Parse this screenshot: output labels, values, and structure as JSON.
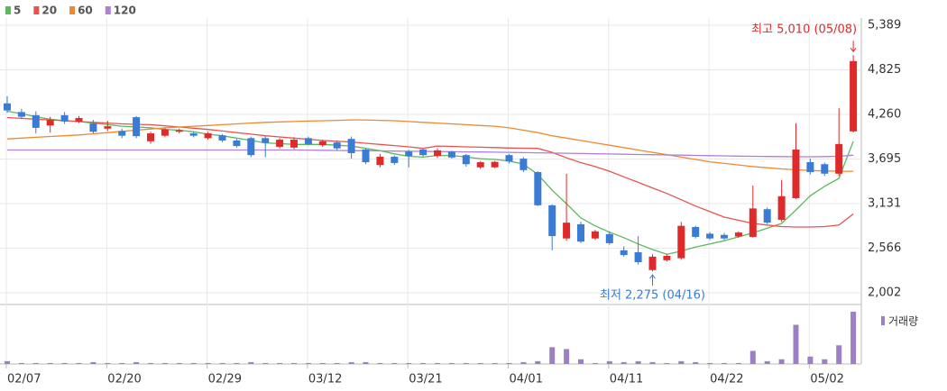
{
  "chart_data": {
    "type": "candlestick",
    "categories": [
      "02/07",
      null,
      null,
      null,
      null,
      null,
      null,
      "02/20",
      null,
      null,
      null,
      null,
      null,
      null,
      "02/29",
      null,
      null,
      null,
      null,
      null,
      null,
      "03/12",
      null,
      null,
      null,
      null,
      null,
      null,
      "03/21",
      null,
      null,
      null,
      null,
      null,
      null,
      "04/01",
      null,
      null,
      null,
      null,
      null,
      null,
      "04/11",
      null,
      null,
      null,
      null,
      null,
      null,
      "04/22",
      null,
      null,
      null,
      null,
      null,
      null,
      "05/02",
      null,
      null,
      null
    ],
    "open": [
      4400,
      4290,
      4250,
      4120,
      4250,
      4170,
      4145,
      4080,
      4050,
      4225,
      3920,
      3990,
      4040,
      4020,
      3960,
      3995,
      3930,
      3960,
      3960,
      3850,
      3840,
      3960,
      3870,
      3905,
      3950,
      3815,
      3620,
      3725,
      3790,
      3815,
      3735,
      3790,
      3745,
      3590,
      3590,
      3745,
      3700,
      3530,
      3110,
      2690,
      2870,
      2690,
      2745,
      2540,
      2515,
      2290,
      2415,
      2440,
      2835,
      2750,
      2735,
      2715,
      2710,
      3060,
      2925,
      3200,
      3655,
      3630,
      3510,
      4045
    ],
    "high": [
      4490,
      4330,
      4300,
      4230,
      4290,
      4240,
      4190,
      4180,
      4080,
      4240,
      4040,
      4090,
      4080,
      4040,
      4040,
      4010,
      3950,
      3980,
      3990,
      3960,
      3970,
      3980,
      3940,
      3930,
      3980,
      3830,
      3760,
      3740,
      3810,
      3830,
      3830,
      3800,
      3760,
      3670,
      3670,
      3760,
      3720,
      3540,
      3120,
      3510,
      2900,
      2800,
      2780,
      2590,
      2720,
      2490,
      2490,
      2900,
      2850,
      2770,
      2760,
      2780,
      3360,
      3080,
      3430,
      4150,
      3700,
      3650,
      4340,
      5010
    ],
    "low": [
      4280,
      4200,
      4020,
      4030,
      4140,
      4150,
      4020,
      4050,
      3960,
      3960,
      3890,
      3970,
      4020,
      3970,
      3940,
      3910,
      3840,
      3720,
      3720,
      3830,
      3820,
      3870,
      3850,
      3800,
      3700,
      3630,
      3590,
      3620,
      3590,
      3730,
      3710,
      3700,
      3600,
      3570,
      3580,
      3640,
      3530,
      3100,
      2540,
      2660,
      2630,
      2670,
      2610,
      2460,
      2360,
      2275,
      2400,
      2420,
      2690,
      2670,
      2670,
      2700,
      2700,
      2870,
      2900,
      3190,
      3500,
      3480,
      3480,
      4030
    ],
    "close": [
      4310,
      4230,
      4090,
      4190,
      4170,
      4215,
      4040,
      4110,
      3990,
      3985,
      4020,
      4070,
      4060,
      3990,
      4020,
      3930,
      3860,
      3745,
      3900,
      3940,
      3940,
      3885,
      3920,
      3830,
      3770,
      3655,
      3725,
      3645,
      3735,
      3745,
      3805,
      3715,
      3630,
      3655,
      3660,
      3665,
      3555,
      3110,
      2720,
      2890,
      2650,
      2780,
      2630,
      2480,
      2390,
      2460,
      2470,
      2850,
      2710,
      2690,
      2690,
      2765,
      3070,
      2890,
      3225,
      3815,
      3530,
      3510,
      3885,
      4935
    ],
    "up_color": "#e02a2a",
    "down_color": "#3a7bd5",
    "series": [
      {
        "name": "5",
        "color": "#5cb85c",
        "values": [
          4300,
          4270,
          4230,
          4200,
          4180,
          4170,
          4150,
          4130,
          4110,
          4100,
          4090,
          4070,
          4060,
          4040,
          4010,
          3990,
          3960,
          3930,
          3900,
          3890,
          3880,
          3880,
          3880,
          3870,
          3860,
          3830,
          3800,
          3760,
          3730,
          3720,
          3740,
          3740,
          3720,
          3700,
          3690,
          3670,
          3630,
          3500,
          3300,
          3130,
          2950,
          2850,
          2770,
          2700,
          2620,
          2550,
          2490,
          2530,
          2580,
          2620,
          2660,
          2710,
          2760,
          2820,
          2880,
          3050,
          3230,
          3350,
          3450,
          3920
        ]
      },
      {
        "name": "20",
        "color": "#e8534f",
        "values": [
          4220,
          4210,
          4200,
          4190,
          4180,
          4170,
          4160,
          4150,
          4140,
          4135,
          4130,
          4115,
          4100,
          4085,
          4070,
          4050,
          4030,
          4010,
          3990,
          3975,
          3960,
          3945,
          3930,
          3920,
          3910,
          3895,
          3880,
          3865,
          3850,
          3830,
          3860,
          3855,
          3850,
          3845,
          3840,
          3835,
          3832,
          3830,
          3780,
          3710,
          3650,
          3600,
          3540,
          3470,
          3400,
          3330,
          3260,
          3180,
          3100,
          3030,
          2960,
          2920,
          2880,
          2860,
          2840,
          2835,
          2835,
          2840,
          2860,
          3000
        ]
      },
      {
        "name": "60",
        "color": "#f0882f",
        "values": [
          3950,
          3960,
          3970,
          3980,
          3990,
          4000,
          4015,
          4030,
          4045,
          4060,
          4075,
          4090,
          4100,
          4110,
          4120,
          4130,
          4140,
          4150,
          4160,
          4165,
          4170,
          4175,
          4180,
          4185,
          4190,
          4190,
          4185,
          4180,
          4170,
          4160,
          4150,
          4140,
          4130,
          4120,
          4110,
          4090,
          4060,
          4030,
          3990,
          3960,
          3930,
          3900,
          3870,
          3840,
          3810,
          3780,
          3750,
          3720,
          3690,
          3660,
          3640,
          3620,
          3600,
          3585,
          3570,
          3560,
          3550,
          3545,
          3540,
          3540
        ]
      },
      {
        "name": "120",
        "color": "#b07fd8",
        "values": [
          3810,
          3810,
          3810,
          3810,
          3810,
          3810,
          3810,
          3810,
          3810,
          3810,
          3810,
          3810,
          3810,
          3810,
          3810,
          3810,
          3810,
          3810,
          3810,
          3810,
          3810,
          3808,
          3806,
          3804,
          3802,
          3800,
          3798,
          3796,
          3794,
          3792,
          3790,
          3788,
          3786,
          3784,
          3782,
          3780,
          3777,
          3774,
          3771,
          3768,
          3765,
          3762,
          3759,
          3756,
          3753,
          3750,
          3747,
          3744,
          3741,
          3738,
          3735,
          3732,
          3730,
          3728,
          3726,
          3724,
          3724,
          3726,
          3730,
          3745
        ]
      }
    ],
    "volume": {
      "name": "거래량",
      "color": "#9b80c4",
      "values": [
        3,
        1,
        1,
        1,
        1,
        1,
        2,
        1,
        1,
        2,
        1,
        1,
        1,
        1,
        1,
        1,
        1,
        2,
        1,
        1,
        1,
        1,
        1,
        1,
        2,
        2,
        1,
        1,
        1,
        1,
        1,
        1,
        1,
        1,
        1,
        1,
        2,
        3,
        18,
        16,
        5,
        1,
        3,
        2,
        3,
        2,
        1,
        3,
        2,
        1,
        1,
        1,
        14,
        3,
        5,
        42,
        8,
        5,
        20,
        56
      ]
    },
    "ylim": [
      1854,
      5480
    ],
    "yticks": [
      {
        "value": 2002,
        "label": "2,002"
      },
      {
        "value": 2566,
        "label": "2,566"
      },
      {
        "value": 3131,
        "label": "3,131"
      },
      {
        "value": 3695,
        "label": "3,695"
      },
      {
        "value": 4260,
        "label": "4,260"
      },
      {
        "value": 4825,
        "label": "4,825"
      },
      {
        "value": 5389,
        "label": "5,389"
      }
    ],
    "grid": true,
    "annotations": {
      "high": "최고 5,010 (05/08)",
      "low": "최저 2,275 (04/16)"
    }
  }
}
